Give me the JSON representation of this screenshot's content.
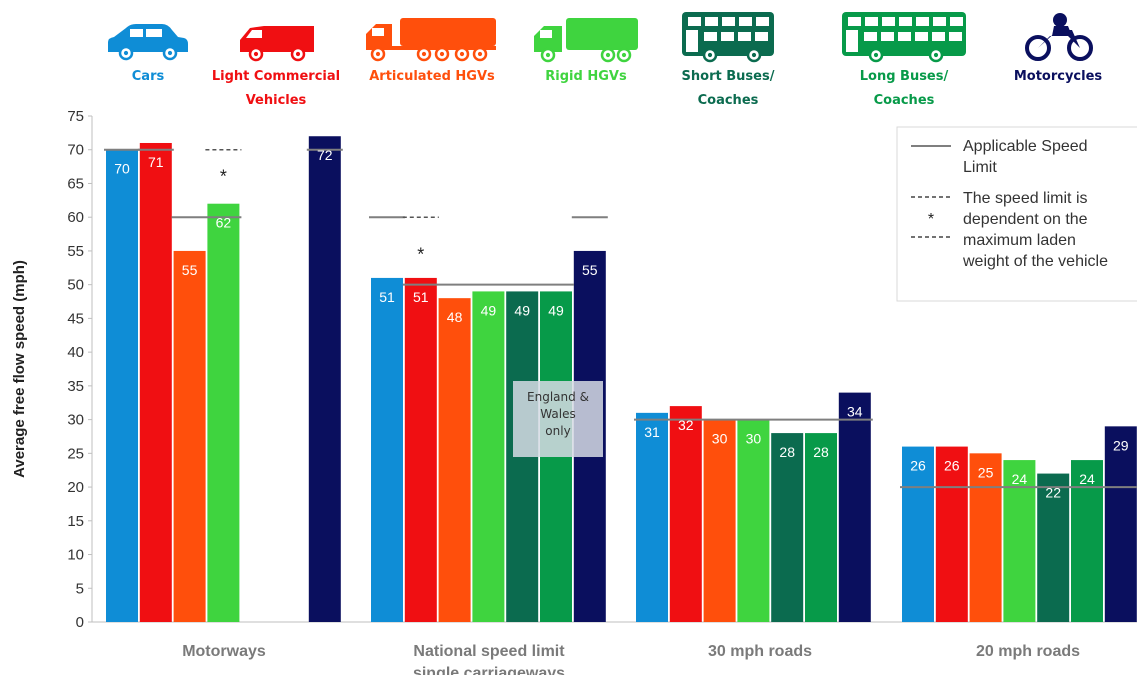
{
  "chart_data": {
    "type": "bar",
    "ylabel": "Average free flow speed (mph)",
    "ylim": [
      0,
      75
    ],
    "yticks": [
      0,
      5,
      10,
      15,
      20,
      25,
      30,
      35,
      40,
      45,
      50,
      55,
      60,
      65,
      70,
      75
    ],
    "grid": false,
    "groups": [
      {
        "name": "Motorways"
      },
      {
        "name": "National speed limit single carriageways"
      },
      {
        "name": "30 mph roads"
      },
      {
        "name": "20 mph roads"
      }
    ],
    "vehicles": [
      {
        "name": "Cars",
        "label_lines": [
          "Cars"
        ],
        "color": "#0f8dd6",
        "icon": "car-icon"
      },
      {
        "name": "Light Commercial Vehicles",
        "label_lines": [
          "Light Commercial",
          "Vehicles"
        ],
        "color": "#f00f12",
        "icon": "van-icon"
      },
      {
        "name": "Articulated HGVs",
        "label_lines": [
          "Articulated HGVs"
        ],
        "color": "#ff4f0c",
        "icon": "articulated-hgv-icon"
      },
      {
        "name": "Rigid HGVs",
        "label_lines": [
          "Rigid HGVs"
        ],
        "color": "#3fd43f",
        "icon": "rigid-hgv-icon"
      },
      {
        "name": "Short Buses/ Coaches",
        "label_lines": [
          "Short Buses/",
          "Coaches"
        ],
        "color": "#0b6b4f",
        "icon": "short-bus-icon"
      },
      {
        "name": "Long Buses/ Coaches",
        "label_lines": [
          "Long Buses/",
          "Coaches"
        ],
        "color": "#079a49",
        "icon": "long-bus-icon"
      },
      {
        "name": "Motorcycles",
        "label_lines": [
          "Motorcycles"
        ],
        "color": "#0a0f5e",
        "icon": "motorcycle-icon"
      }
    ],
    "series": [
      {
        "name": "Cars",
        "values": [
          70,
          51,
          31,
          26
        ]
      },
      {
        "name": "Light Commercial Vehicles",
        "values": [
          71,
          51,
          32,
          26
        ]
      },
      {
        "name": "Articulated HGVs",
        "values": [
          55,
          48,
          30,
          25
        ]
      },
      {
        "name": "Rigid HGVs",
        "values": [
          62,
          49,
          30,
          24
        ]
      },
      {
        "name": "Short Buses/ Coaches",
        "values": [
          null,
          49,
          28,
          22
        ]
      },
      {
        "name": "Long Buses/ Coaches",
        "values": [
          null,
          49,
          28,
          24
        ]
      },
      {
        "name": "Motorcycles",
        "values": [
          72,
          55,
          34,
          29
        ]
      }
    ],
    "speed_limits": [
      {
        "group": 0,
        "from": 0,
        "to": 0,
        "value": 70,
        "style": "solid"
      },
      {
        "group": 0,
        "from": 1,
        "to": 1,
        "value": 70,
        "style": "solid"
      },
      {
        "group": 0,
        "from": 2,
        "to": 3,
        "value": 60,
        "style": "solid"
      },
      {
        "group": 0,
        "from": 3,
        "to": 3,
        "value": 70,
        "style": "dashed"
      },
      {
        "group": 0,
        "from": 6,
        "to": 6,
        "value": 70,
        "style": "solid"
      },
      {
        "group": 1,
        "from": 0,
        "to": 0,
        "value": 60,
        "style": "solid"
      },
      {
        "group": 1,
        "from": 1,
        "to": 1,
        "value": 60,
        "style": "dashed"
      },
      {
        "group": 1,
        "from": 1,
        "to": 5,
        "value": 50,
        "style": "solid"
      },
      {
        "group": 1,
        "from": 6,
        "to": 6,
        "value": 60,
        "style": "solid"
      },
      {
        "group": 2,
        "from": 0,
        "to": 6,
        "value": 30,
        "style": "solid"
      },
      {
        "group": 3,
        "from": 0,
        "to": 6,
        "value": 20,
        "style": "solid"
      }
    ],
    "asterisks": [
      {
        "group": 0,
        "bar": 3,
        "value": 66
      },
      {
        "group": 1,
        "bar": 1,
        "value": 54.5
      }
    ],
    "annotations": [
      {
        "group": 1,
        "text_lines": [
          "England &",
          "Wales",
          "only"
        ]
      }
    ],
    "legend": {
      "position": "top-right",
      "entries": [
        {
          "style": "solid",
          "text_lines": [
            "Applicable Speed",
            "Limit"
          ]
        },
        {
          "style": "dashed-asterisk",
          "text_lines": [
            "The speed limit is",
            "dependent on the",
            "maximum laden",
            "weight of the vehicle"
          ]
        }
      ]
    }
  }
}
